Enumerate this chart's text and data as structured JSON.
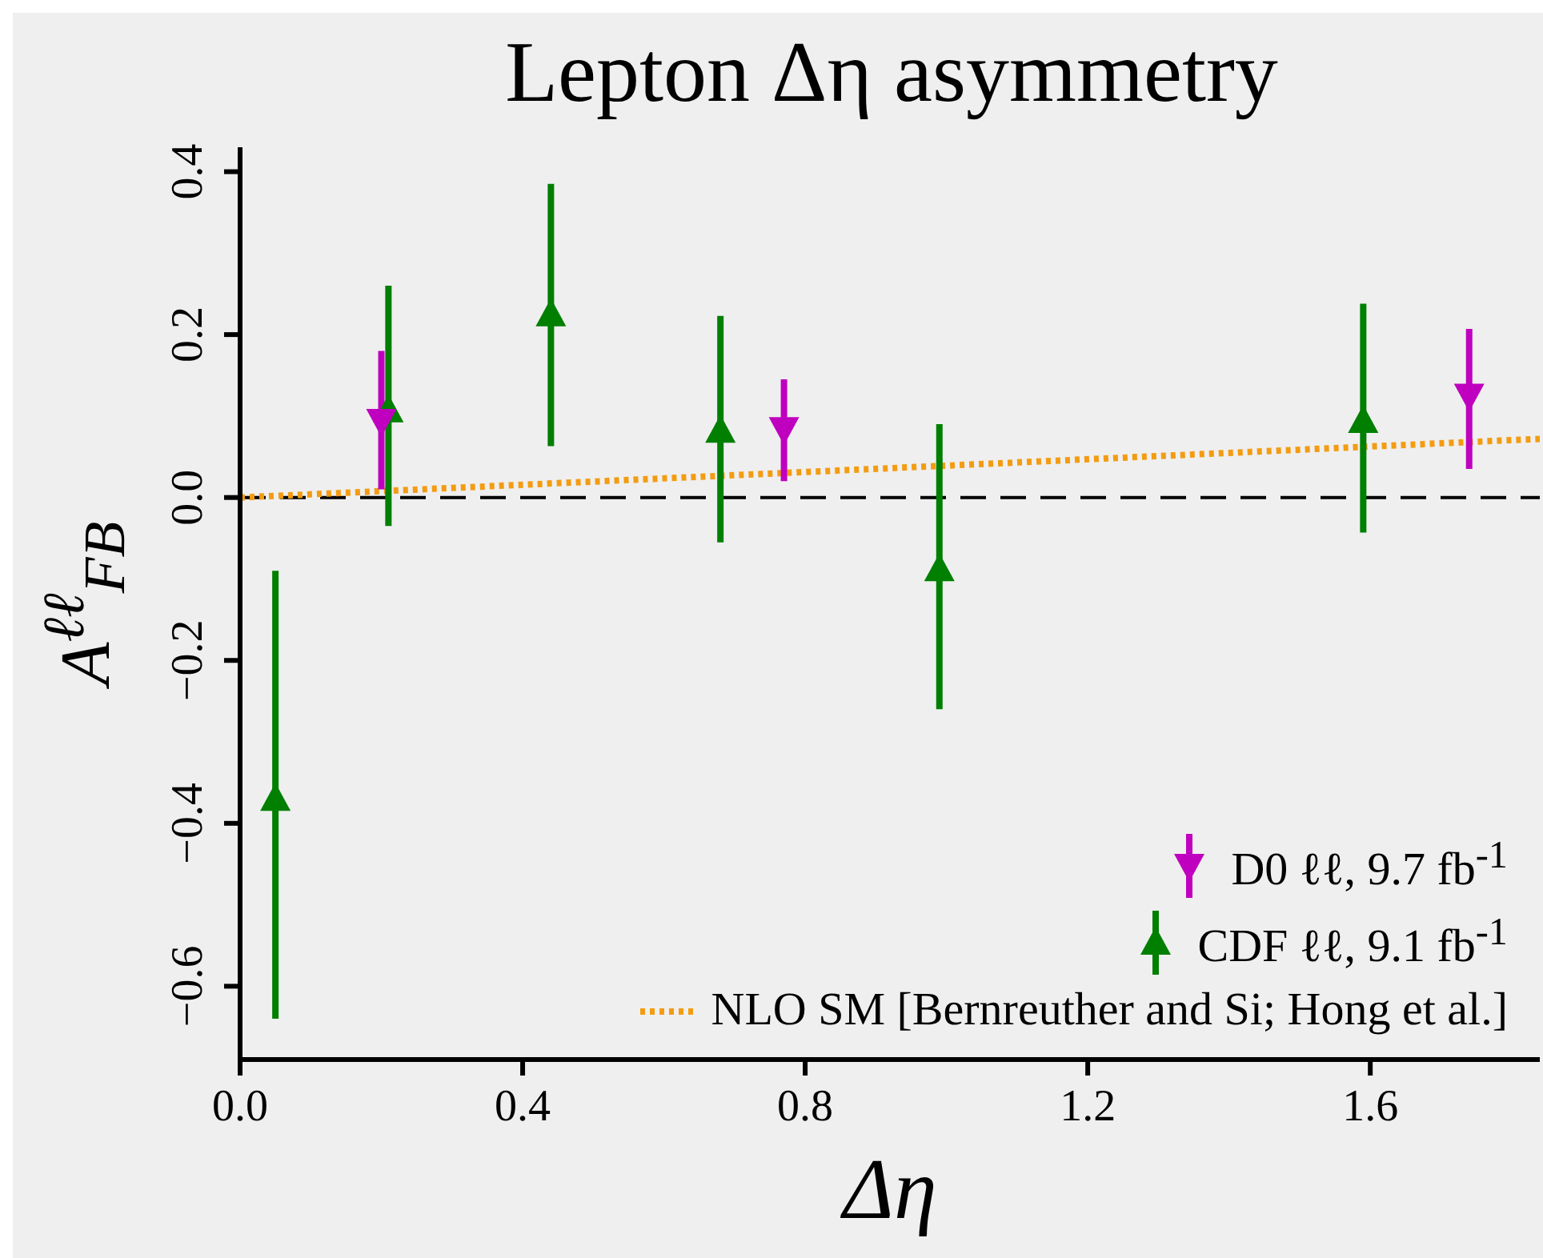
{
  "chart_data": {
    "type": "scatter",
    "title": "Lepton Δη  asymmetry",
    "xlabel": "Δη",
    "ylabel": "A$^{ℓℓ}$$_{FB}$",
    "series": [
      {
        "name": "D0 ℓℓ, 9.7 fb$^{-1}$",
        "marker": "triangle-down",
        "color": "#bf00bf",
        "x": [
          0.2,
          0.77,
          1.74
        ],
        "values": [
          0.094,
          0.084,
          0.125
        ],
        "errors": [
          [
            0.01,
            0.18
          ],
          [
            0.02,
            0.145
          ],
          [
            0.035,
            0.207
          ]
        ]
      },
      {
        "name": "CDF ℓℓ, 9.1 fb$^{-1}$",
        "marker": "triangle",
        "color": "#007f00",
        "x": [
          0.05,
          0.21,
          0.44,
          0.68,
          0.99,
          1.59
        ],
        "values": [
          -0.37,
          0.107,
          0.225,
          0.082,
          -0.088,
          0.094
        ],
        "errors": [
          [
            -0.64,
            -0.09
          ],
          [
            -0.035,
            0.26
          ],
          [
            0.063,
            0.385
          ],
          [
            -0.055,
            0.223
          ],
          [
            -0.26,
            0.09
          ],
          [
            -0.043,
            0.238
          ]
        ]
      },
      {
        "name": "NLO SM [Bernreuther and Si; Hong et al.]",
        "type": "line",
        "line_style": "dotted",
        "marker": "none",
        "color": "#f39c12",
        "x": [
          0,
          1.84
        ],
        "values": [
          0,
          0.072
        ]
      }
    ],
    "xlim": [
      0,
      1.84
    ],
    "xticks": [
      {
        "value": 0,
        "label": "0.0"
      },
      {
        "value": 0.4,
        "label": "0.4"
      },
      {
        "value": 0.8,
        "label": "0.8"
      },
      {
        "value": 1.2,
        "label": "1.2"
      },
      {
        "value": 1.6,
        "label": "1.6"
      }
    ],
    "ylim": [
      -0.69,
      0.43
    ],
    "yticks": [
      {
        "value": -0.6,
        "label": "−0.6"
      },
      {
        "value": -0.4,
        "label": "−0.4"
      },
      {
        "value": -0.2,
        "label": "−0.2"
      },
      {
        "value": 0,
        "label": "0.0"
      },
      {
        "value": 0.2,
        "label": "0.2"
      },
      {
        "value": 0.4,
        "label": "0.4"
      }
    ],
    "ref_lines": [
      {
        "axis": "y",
        "value": 0,
        "color": "#000000",
        "line_style": "dashed"
      }
    ],
    "legend": "bottom right"
  }
}
